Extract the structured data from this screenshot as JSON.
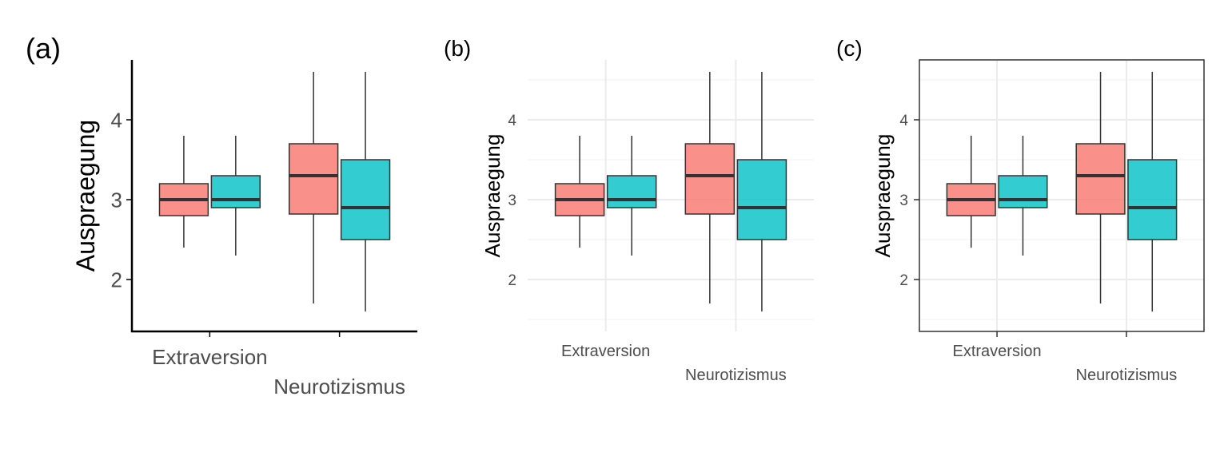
{
  "colors": {
    "fill_a": "#F8766D",
    "fill_b": "#00BFC4",
    "median": "#333333",
    "whisker": "#333333",
    "axis_dark": "#000000",
    "tick_text": "#4D4D4D",
    "grid_major": "#EBEBEB",
    "grid_minor": "#F4F4F4",
    "panel_border": "#333333"
  },
  "chart_data": [
    {
      "panel_label": "(a)",
      "type": "box",
      "theme": "classic",
      "ylabel": "Auspraegung",
      "categories": [
        "Extraversion",
        "Neurotizismus"
      ],
      "category_label_layout": "dodged",
      "yticks": [
        2,
        3,
        4
      ],
      "ylim": [
        1.35,
        4.75
      ],
      "grid": false,
      "boxes": [
        {
          "category": "Extraversion",
          "group": 1,
          "min": 2.4,
          "q1": 2.8,
          "median": 3.0,
          "q3": 3.2,
          "max": 3.8
        },
        {
          "category": "Extraversion",
          "group": 2,
          "min": 2.3,
          "q1": 2.9,
          "median": 3.0,
          "q3": 3.3,
          "max": 3.8
        },
        {
          "category": "Neurotizismus",
          "group": 1,
          "min": 1.7,
          "q1": 2.82,
          "median": 3.3,
          "q3": 3.7,
          "max": 4.6
        },
        {
          "category": "Neurotizismus",
          "group": 2,
          "min": 1.6,
          "q1": 2.5,
          "median": 2.9,
          "q3": 3.5,
          "max": 4.6
        }
      ]
    },
    {
      "panel_label": "(b)",
      "type": "box",
      "theme": "minimal",
      "ylabel": "Auspraegung",
      "categories": [
        "Extraversion",
        "Neurotizismus"
      ],
      "category_label_layout": "dodged",
      "yticks": [
        2,
        3,
        4
      ],
      "ylim": [
        1.35,
        4.75
      ],
      "grid": true,
      "boxes": [
        {
          "category": "Extraversion",
          "group": 1,
          "min": 2.4,
          "q1": 2.8,
          "median": 3.0,
          "q3": 3.2,
          "max": 3.8
        },
        {
          "category": "Extraversion",
          "group": 2,
          "min": 2.3,
          "q1": 2.9,
          "median": 3.0,
          "q3": 3.3,
          "max": 3.8
        },
        {
          "category": "Neurotizismus",
          "group": 1,
          "min": 1.7,
          "q1": 2.82,
          "median": 3.3,
          "q3": 3.7,
          "max": 4.6
        },
        {
          "category": "Neurotizismus",
          "group": 2,
          "min": 1.6,
          "q1": 2.5,
          "median": 2.9,
          "q3": 3.5,
          "max": 4.6
        }
      ]
    },
    {
      "panel_label": "(c)",
      "type": "box",
      "theme": "bw",
      "ylabel": "Auspraegung",
      "categories": [
        "Extraversion",
        "Neurotizismus"
      ],
      "category_label_layout": "dodged",
      "yticks": [
        2,
        3,
        4
      ],
      "ylim": [
        1.35,
        4.75
      ],
      "grid": true,
      "boxes": [
        {
          "category": "Extraversion",
          "group": 1,
          "min": 2.4,
          "q1": 2.8,
          "median": 3.0,
          "q3": 3.2,
          "max": 3.8
        },
        {
          "category": "Extraversion",
          "group": 2,
          "min": 2.3,
          "q1": 2.9,
          "median": 3.0,
          "q3": 3.3,
          "max": 3.8
        },
        {
          "category": "Neurotizismus",
          "group": 1,
          "min": 1.7,
          "q1": 2.82,
          "median": 3.3,
          "q3": 3.7,
          "max": 4.6
        },
        {
          "category": "Neurotizismus",
          "group": 2,
          "min": 1.6,
          "q1": 2.5,
          "median": 2.9,
          "q3": 3.5,
          "max": 4.6
        }
      ]
    }
  ]
}
